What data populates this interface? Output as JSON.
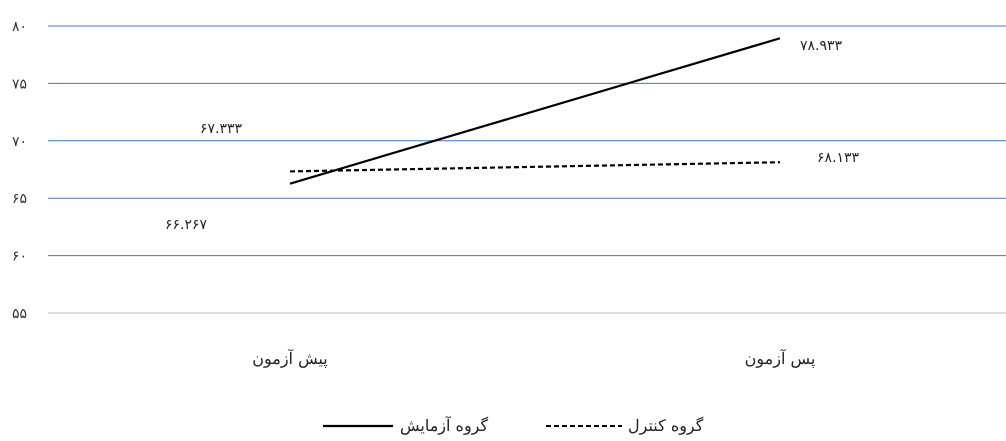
{
  "chart_data": {
    "type": "line",
    "categories": [
      "پیش آزمون",
      "پس آزمون"
    ],
    "series": [
      {
        "name": "گروه آزمایش",
        "values": [
          66.267,
          78.933
        ],
        "data_labels": [
          "۶۶.۲۶۷",
          "۷۸.۹۳۳"
        ],
        "color": "#000000",
        "dash": "solid"
      },
      {
        "name": "گروه کنترل",
        "values": [
          67.333,
          68.133
        ],
        "data_labels": [
          "۶۷.۳۳۳",
          "۶۸.۱۳۳"
        ],
        "color": "#000000",
        "dash": "dashed"
      }
    ],
    "y_ticks": [
      55,
      60,
      65,
      70,
      75,
      80
    ],
    "y_tick_labels": [
      "۵۵",
      "۶۰",
      "۶۵",
      "۷۰",
      "۷۵",
      "۸۰"
    ],
    "ylim": [
      55,
      80
    ],
    "grid": true,
    "gridline_color": "#4472c4",
    "legend_position": "bottom",
    "title": "",
    "xlabel": "",
    "ylabel": ""
  }
}
